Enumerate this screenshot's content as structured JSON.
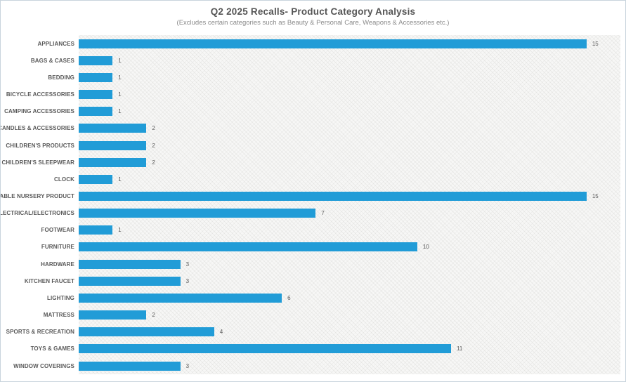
{
  "chart_data": {
    "type": "bar",
    "orientation": "horizontal",
    "title": "Q2 2025 Recalls- Product Category Analysis",
    "subtitle": "(Excludes certain categories such as Beauty & Personal Care, Weapons & Accessories etc.)",
    "categories": [
      "APPLIANCES",
      "BAGS & CASES",
      "BEDDING",
      "BICYCLE ACCESSORIES",
      "CAMPING ACCESSORIES",
      "CANDLES & ACCESSORIES",
      "CHILDREN'S PRODUCTS",
      "CHILDREN'S SLEEPWEAR",
      "CLOCK",
      "DURABLE NURSERY PRODUCT",
      "ELECTRICAL/ELECTRONICS",
      "FOOTWEAR",
      "FURNITURE",
      "HARDWARE",
      "KITCHEN FAUCET",
      "LIGHTING",
      "MATTRESS",
      "SPORTS & RECREATION",
      "TOYS & GAMES",
      "WINDOW COVERINGS"
    ],
    "values": [
      15,
      1,
      1,
      1,
      1,
      2,
      2,
      2,
      1,
      15,
      7,
      1,
      10,
      3,
      3,
      6,
      2,
      4,
      11,
      3
    ],
    "data_labels_shown": true,
    "xlabel": "",
    "ylabel": "",
    "xlim": [
      0,
      16
    ],
    "grid": false,
    "legend": "none",
    "bar_color": "#219cd7",
    "plot_background": "hatched-light-gray"
  }
}
